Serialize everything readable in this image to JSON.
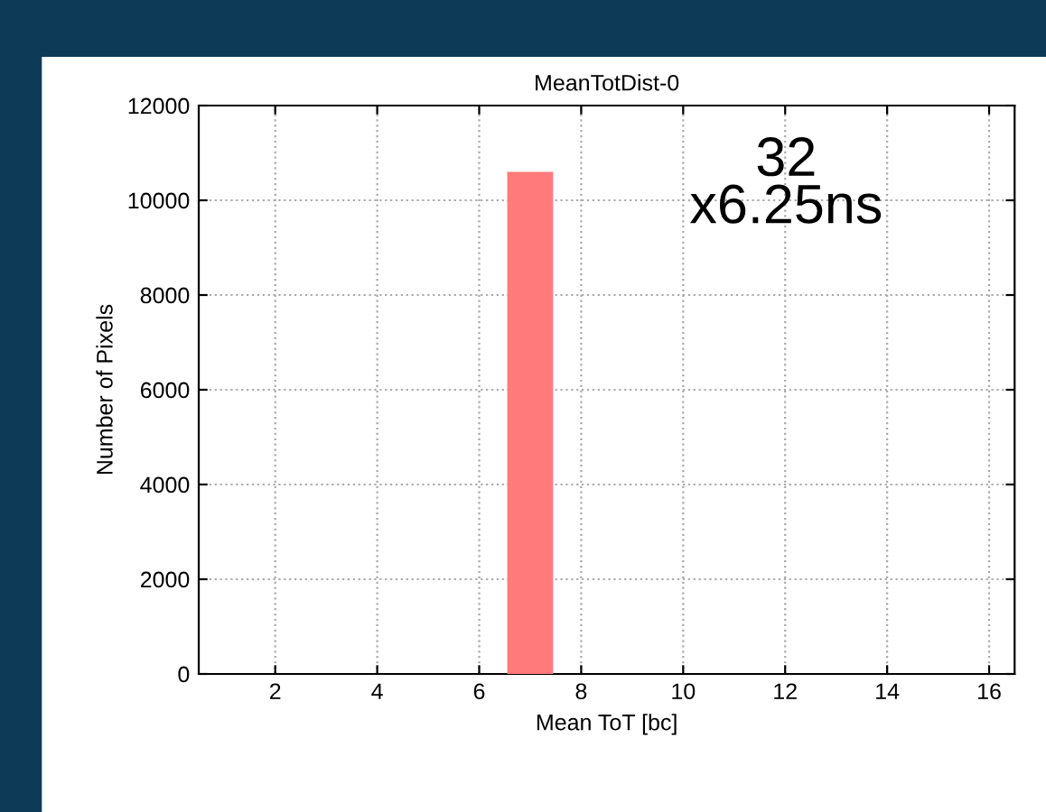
{
  "chart_data": {
    "type": "histogram",
    "title": "MeanTotDist-0",
    "xlabel": "Mean ToT [bc]",
    "ylabel": "Number of Pixels",
    "bins": [
      6.55,
      7.45
    ],
    "values": [
      10600
    ],
    "color": "#ff7b7b",
    "xlim": [
      0.5,
      16.5
    ],
    "xticks": [
      2,
      4,
      6,
      8,
      10,
      12,
      14,
      16
    ],
    "ylim": [
      0,
      12000
    ],
    "yticks": [
      0,
      2000,
      4000,
      6000,
      8000,
      10000,
      12000
    ],
    "grid": true,
    "annotations": [
      "32\nx6.25ns"
    ]
  }
}
